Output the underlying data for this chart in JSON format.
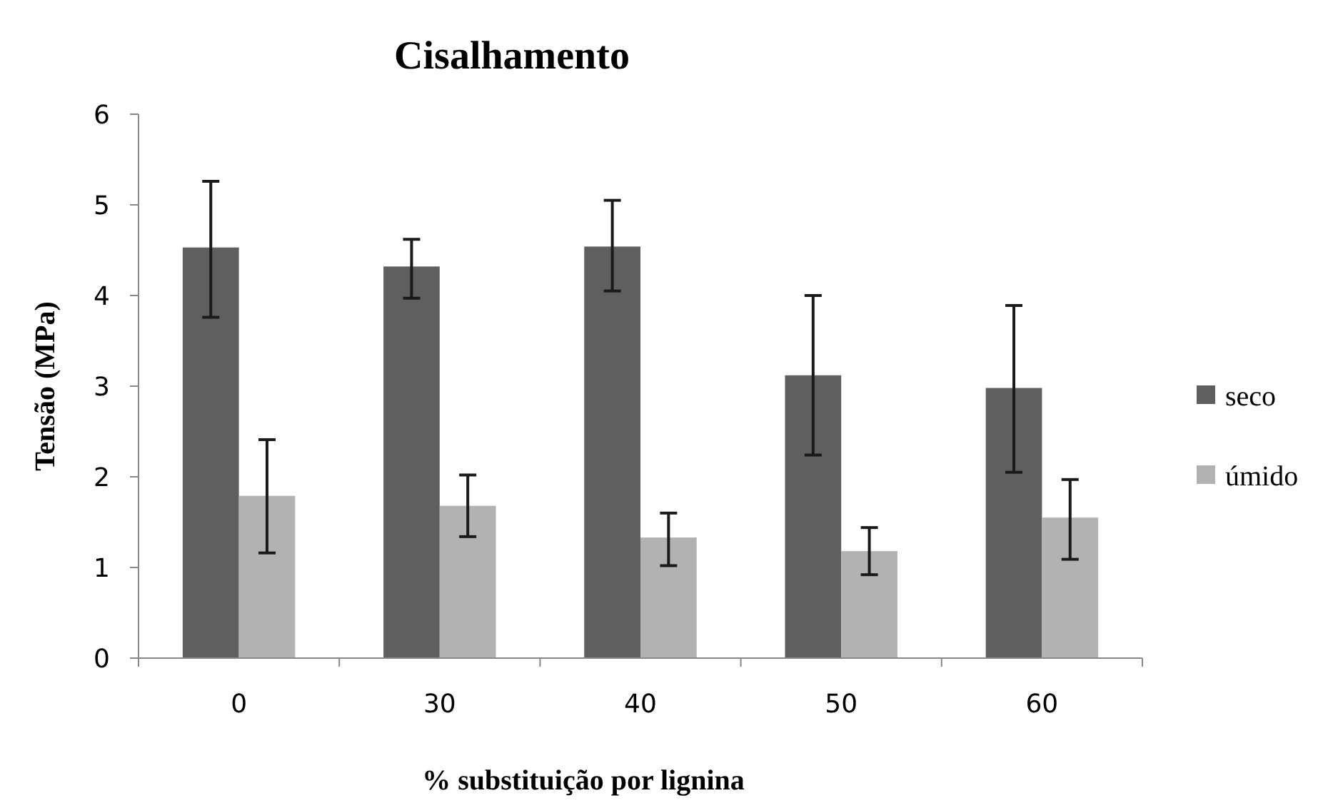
{
  "chart_data": {
    "type": "bar",
    "title": "Cisalhamento",
    "xlabel": "% substituição por lignina",
    "ylabel": "Tensão (MPa)",
    "categories": [
      "0",
      "30",
      "40",
      "50",
      "60"
    ],
    "series": [
      {
        "name": "seco",
        "color": "#5f5f5f",
        "values": [
          4.53,
          4.32,
          4.54,
          3.12,
          2.98
        ],
        "errors": [
          [
            3.76,
            5.26
          ],
          [
            3.97,
            4.62
          ],
          [
            4.05,
            5.05
          ],
          [
            2.24,
            4.0
          ],
          [
            2.05,
            3.89
          ]
        ]
      },
      {
        "name": "úmido",
        "color": "#b2b2b2",
        "values": [
          1.79,
          1.68,
          1.33,
          1.18,
          1.55
        ],
        "errors": [
          [
            1.16,
            2.41
          ],
          [
            1.34,
            2.02
          ],
          [
            1.02,
            1.6
          ],
          [
            0.92,
            1.44
          ],
          [
            1.09,
            1.97
          ]
        ]
      }
    ],
    "ylim": [
      0,
      6
    ],
    "yticks": [
      0,
      1,
      2,
      3,
      4,
      5,
      6
    ],
    "grid": false,
    "legend": "right"
  }
}
